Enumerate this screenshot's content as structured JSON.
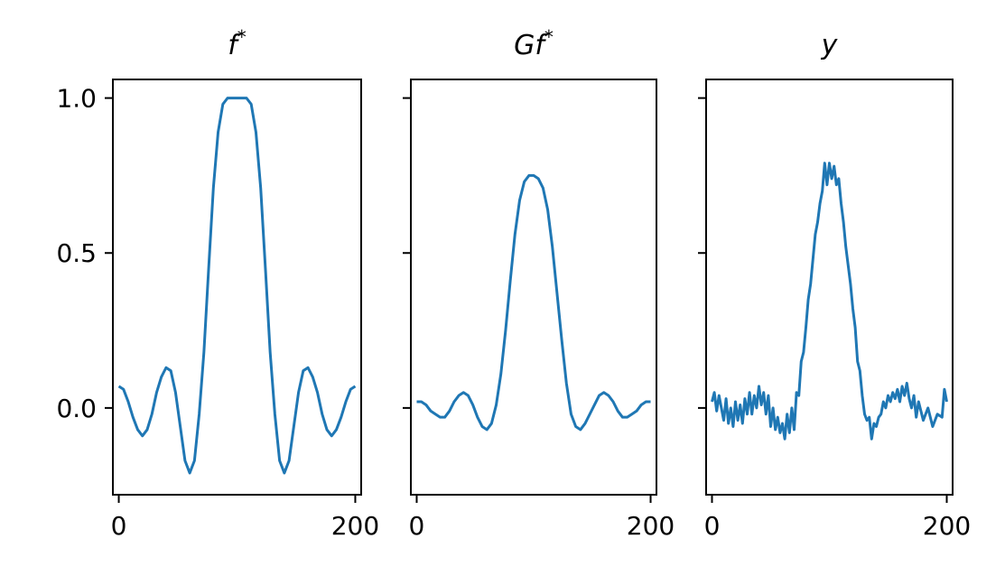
{
  "chart_data": [
    {
      "type": "line",
      "title": "f*",
      "xlabel": "",
      "ylabel": "",
      "xlim": [
        -5,
        205
      ],
      "ylim": [
        -0.28,
        1.06
      ],
      "xticks": [
        0,
        200
      ],
      "xtick_labels": [
        "0",
        "200"
      ],
      "yticks": [
        0.0,
        0.5,
        1.0
      ],
      "ytick_labels": [
        "0.0",
        "0.5",
        "1.0"
      ],
      "show_ytick_labels": true,
      "grid": false,
      "series": [
        {
          "color": "#1f77b4",
          "x": [
            0,
            4,
            8,
            12,
            16,
            20,
            24,
            28,
            32,
            36,
            40,
            44,
            48,
            52,
            56,
            60,
            64,
            68,
            72,
            76,
            80,
            84,
            88,
            92,
            96,
            100,
            104,
            108,
            112,
            116,
            120,
            124,
            128,
            132,
            136,
            140,
            144,
            148,
            152,
            156,
            160,
            164,
            168,
            172,
            176,
            180,
            184,
            188,
            192,
            196,
            200
          ],
          "y": [
            0.07,
            0.06,
            0.02,
            -0.03,
            -0.07,
            -0.09,
            -0.07,
            -0.02,
            0.05,
            0.1,
            0.13,
            0.12,
            0.05,
            -0.06,
            -0.17,
            -0.21,
            -0.17,
            -0.02,
            0.18,
            0.45,
            0.71,
            0.89,
            0.98,
            1.0,
            1.0,
            1.0,
            1.0,
            1.0,
            0.98,
            0.89,
            0.71,
            0.45,
            0.18,
            -0.02,
            -0.17,
            -0.21,
            -0.17,
            -0.06,
            0.05,
            0.12,
            0.13,
            0.1,
            0.05,
            -0.02,
            -0.07,
            -0.09,
            -0.07,
            -0.03,
            0.02,
            0.06,
            0.07
          ]
        }
      ]
    },
    {
      "type": "line",
      "title": "Gf*",
      "xlabel": "",
      "ylabel": "",
      "xlim": [
        -5,
        205
      ],
      "ylim": [
        -0.28,
        1.06
      ],
      "xticks": [
        0,
        200
      ],
      "xtick_labels": [
        "0",
        "200"
      ],
      "yticks": [
        0.0,
        0.5,
        1.0
      ],
      "show_ytick_labels": false,
      "grid": false,
      "series": [
        {
          "color": "#1f77b4",
          "x": [
            0,
            4,
            8,
            12,
            16,
            20,
            24,
            28,
            32,
            36,
            40,
            44,
            48,
            52,
            56,
            60,
            64,
            68,
            72,
            76,
            80,
            84,
            88,
            92,
            96,
            100,
            104,
            108,
            112,
            116,
            120,
            124,
            128,
            132,
            136,
            140,
            144,
            148,
            152,
            156,
            160,
            164,
            168,
            172,
            176,
            180,
            184,
            188,
            192,
            196,
            200
          ],
          "y": [
            0.02,
            0.02,
            0.01,
            -0.01,
            -0.02,
            -0.03,
            -0.03,
            -0.01,
            0.02,
            0.04,
            0.05,
            0.04,
            0.01,
            -0.03,
            -0.06,
            -0.07,
            -0.05,
            0.01,
            0.11,
            0.25,
            0.41,
            0.56,
            0.67,
            0.73,
            0.75,
            0.75,
            0.74,
            0.71,
            0.64,
            0.52,
            0.37,
            0.22,
            0.08,
            -0.02,
            -0.06,
            -0.07,
            -0.05,
            -0.02,
            0.01,
            0.04,
            0.05,
            0.04,
            0.02,
            -0.01,
            -0.03,
            -0.03,
            -0.02,
            -0.01,
            0.01,
            0.02,
            0.02
          ]
        }
      ]
    },
    {
      "type": "line",
      "title": "y",
      "xlabel": "",
      "ylabel": "",
      "xlim": [
        -5,
        205
      ],
      "ylim": [
        -0.28,
        1.06
      ],
      "xticks": [
        0,
        200
      ],
      "xtick_labels": [
        "0",
        "200"
      ],
      "yticks": [
        0.0,
        0.5,
        1.0
      ],
      "show_ytick_labels": false,
      "grid": false,
      "series": [
        {
          "color": "#1f77b4",
          "x": [
            0,
            2,
            4,
            6,
            8,
            10,
            12,
            14,
            16,
            18,
            20,
            22,
            24,
            26,
            28,
            30,
            32,
            34,
            36,
            38,
            40,
            42,
            44,
            46,
            48,
            50,
            52,
            54,
            56,
            58,
            60,
            62,
            64,
            66,
            68,
            70,
            72,
            74,
            76,
            78,
            80,
            82,
            84,
            86,
            88,
            90,
            92,
            94,
            96,
            98,
            100,
            102,
            104,
            106,
            108,
            110,
            112,
            114,
            116,
            118,
            120,
            122,
            124,
            126,
            128,
            130,
            132,
            134,
            136,
            138,
            140,
            142,
            144,
            146,
            148,
            150,
            152,
            154,
            156,
            158,
            160,
            162,
            164,
            166,
            168,
            170,
            172,
            174,
            176,
            180,
            184,
            188,
            192,
            196,
            198,
            200
          ],
          "y": [
            0.02,
            0.05,
            -0.01,
            0.04,
            0.0,
            -0.04,
            0.03,
            -0.05,
            0.0,
            -0.06,
            0.02,
            -0.04,
            0.01,
            -0.05,
            0.03,
            -0.02,
            0.05,
            -0.02,
            0.04,
            0.0,
            0.07,
            0.01,
            0.05,
            -0.02,
            0.04,
            -0.06,
            0.0,
            -0.07,
            -0.03,
            -0.08,
            -0.05,
            -0.1,
            -0.02,
            -0.08,
            0.0,
            -0.07,
            0.05,
            0.04,
            0.15,
            0.18,
            0.26,
            0.35,
            0.4,
            0.48,
            0.56,
            0.6,
            0.66,
            0.7,
            0.79,
            0.72,
            0.79,
            0.74,
            0.78,
            0.72,
            0.74,
            0.66,
            0.6,
            0.52,
            0.46,
            0.4,
            0.32,
            0.26,
            0.15,
            0.12,
            0.04,
            -0.02,
            -0.04,
            -0.03,
            -0.1,
            -0.05,
            -0.06,
            -0.03,
            -0.02,
            0.02,
            0.0,
            0.04,
            0.02,
            0.05,
            0.03,
            0.06,
            0.02,
            0.07,
            0.04,
            0.08,
            0.03,
            0.0,
            0.04,
            -0.03,
            0.02,
            -0.04,
            0.0,
            -0.06,
            -0.02,
            -0.03,
            0.06,
            0.02
          ]
        }
      ]
    }
  ]
}
